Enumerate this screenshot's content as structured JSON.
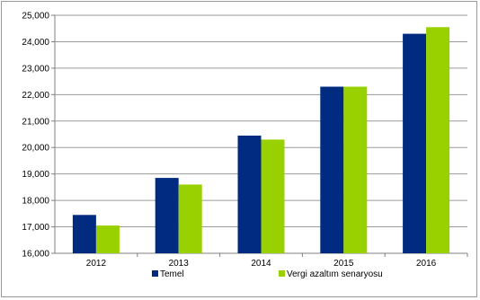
{
  "chart_data": {
    "type": "bar",
    "title": "",
    "xlabel": "",
    "ylabel": "",
    "categories": [
      "2012",
      "2013",
      "2014",
      "2015",
      "2016"
    ],
    "ylim": [
      16000,
      25000
    ],
    "yticks": [
      16000,
      17000,
      18000,
      19000,
      20000,
      21000,
      22000,
      23000,
      24000,
      25000
    ],
    "ytick_labels": [
      "16,000",
      "17,000",
      "18,000",
      "19,000",
      "20,000",
      "21,000",
      "22,000",
      "23,000",
      "24,000",
      "25,000"
    ],
    "grid": true,
    "legend_position": "bottom",
    "series": [
      {
        "name": "Temel",
        "color": "#002B80",
        "values": [
          17450,
          18850,
          20450,
          22300,
          24300
        ]
      },
      {
        "name": "Vergi azaltım senaryosu",
        "color": "#99D100",
        "values": [
          17050,
          18600,
          20300,
          22300,
          24550
        ]
      }
    ]
  }
}
